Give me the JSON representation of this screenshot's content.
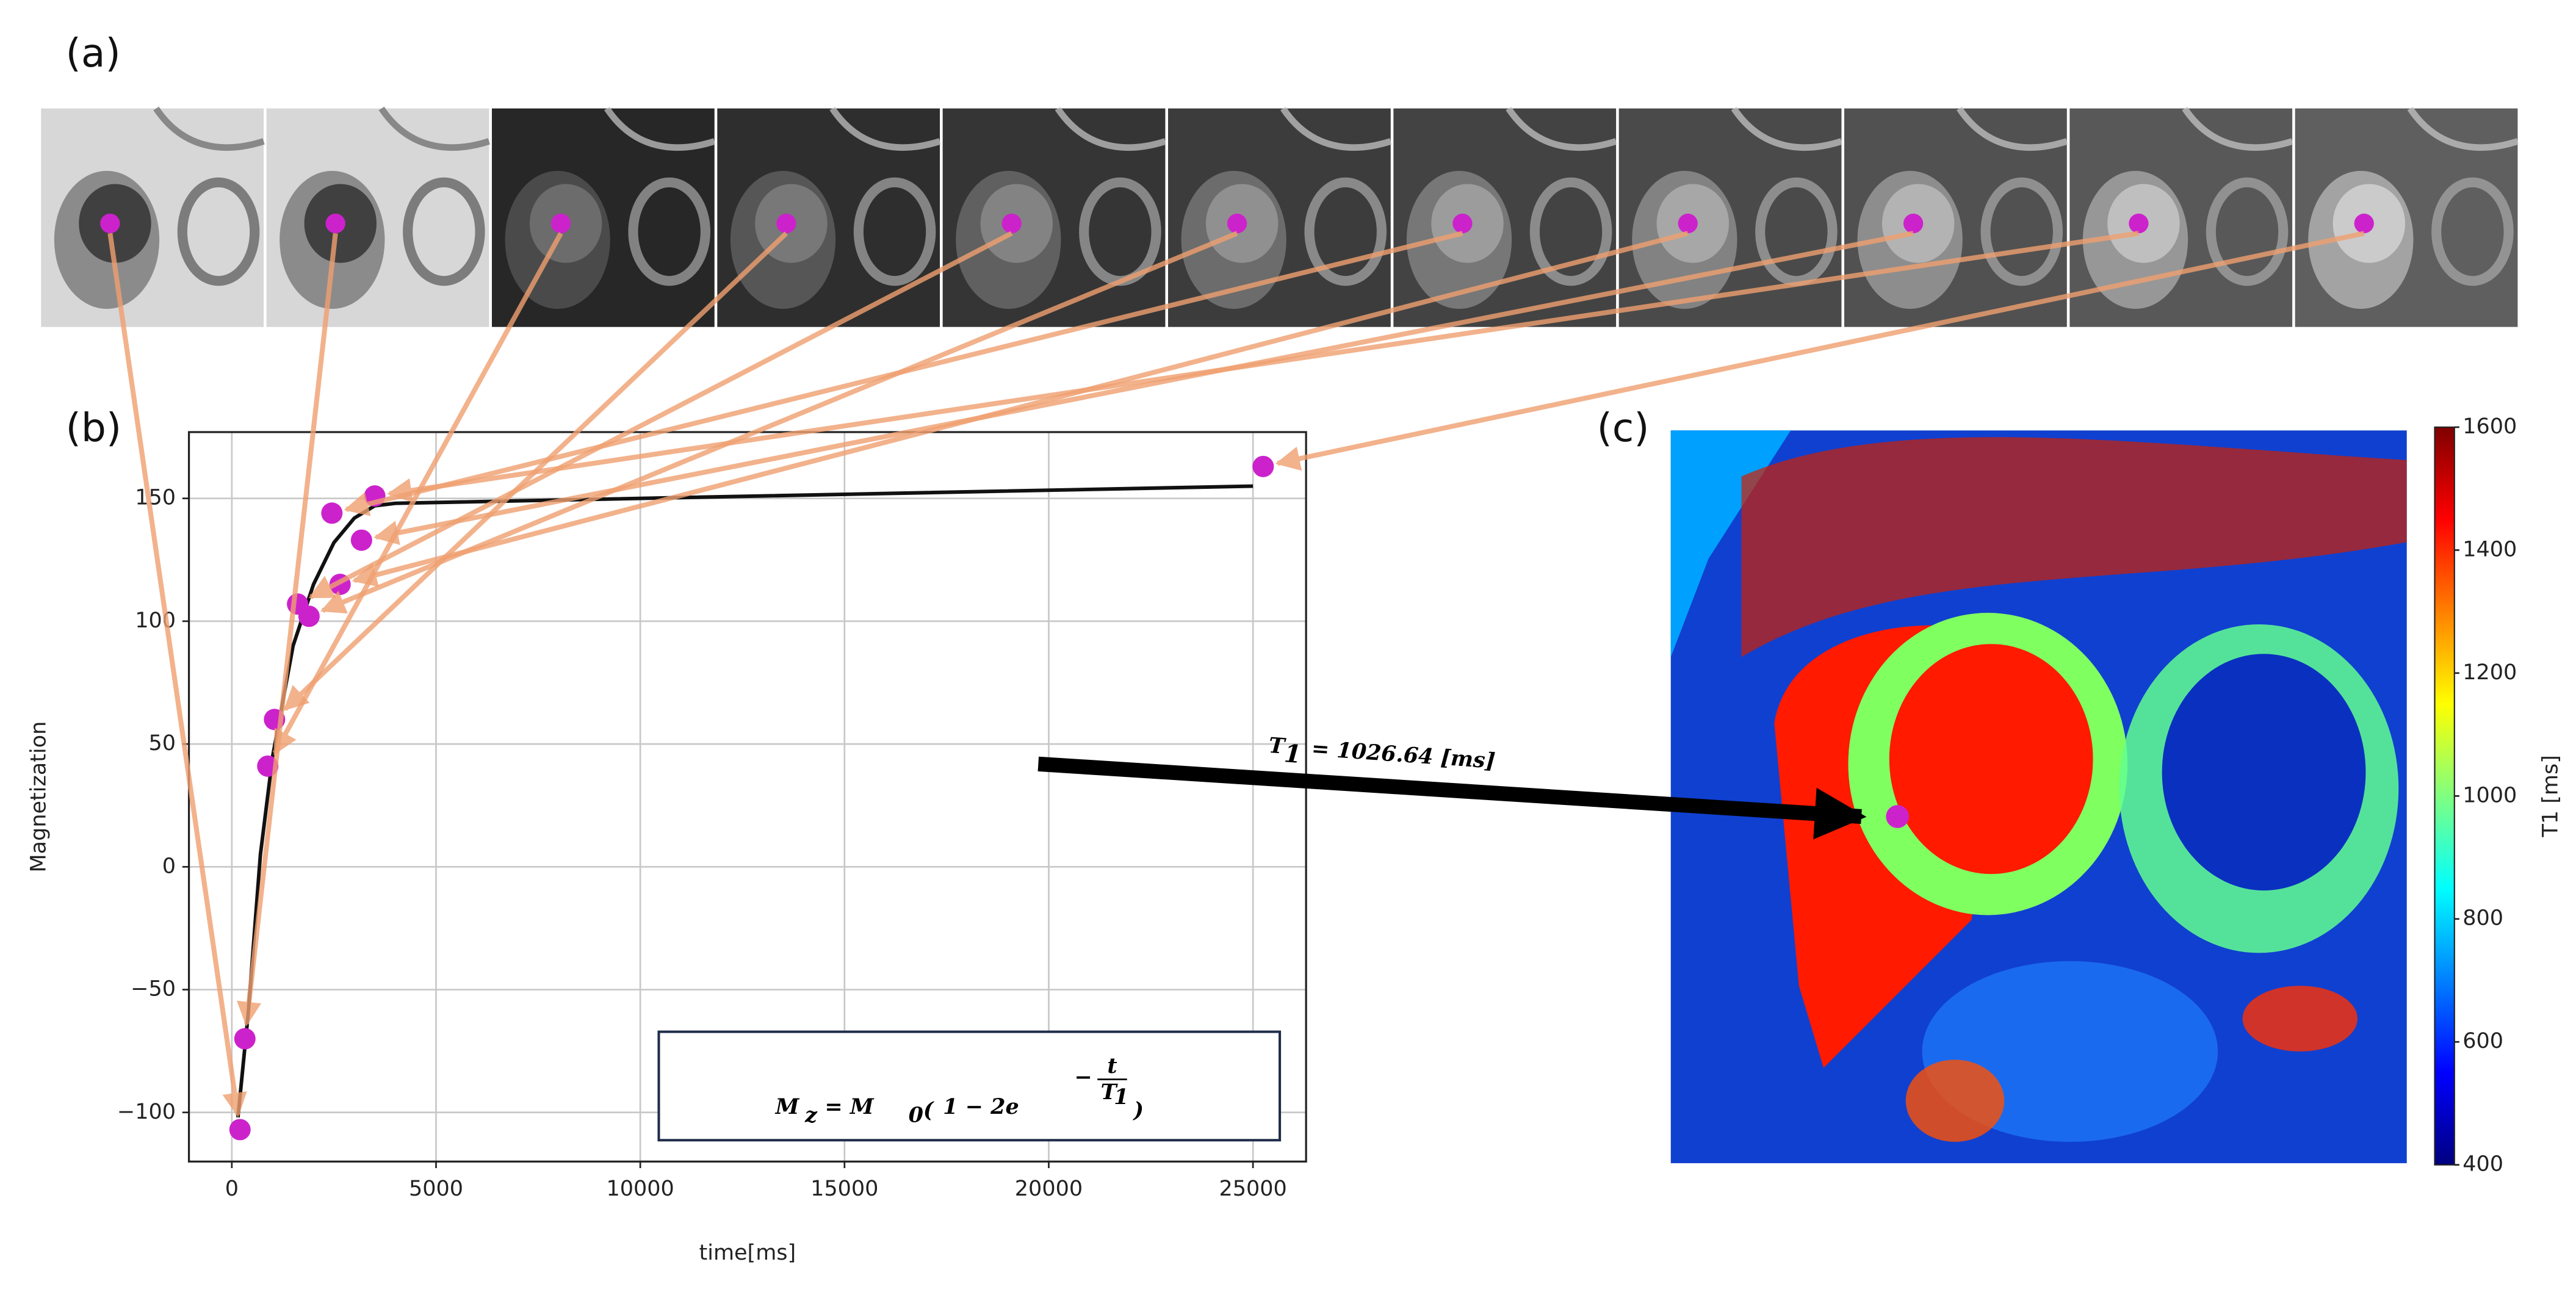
{
  "panel_labels": [
    "(a)",
    "(b)",
    "(c)"
  ],
  "annotation": {
    "symbol": "T",
    "subscript": "1",
    "text": "= 1026.64 [ms]"
  },
  "formula": {
    "lhs": "M",
    "lhs_sub": "z",
    "eq": "= M",
    "eq_sub": "0",
    "open": "(",
    "body": "1 − 2e",
    "exp_sign": "−",
    "exp_num": "t",
    "exp_den": "T",
    "exp_den_sub": "1",
    "close": ")"
  },
  "chart_data": [
    {
      "type": "scatter",
      "x_label": "time[ms]",
      "y_label": "Magnetization",
      "x": [
        200,
        320,
        880,
        1045,
        1610,
        1890,
        2450,
        2650,
        3175,
        3500,
        25250
      ],
      "values": [
        -107,
        -70,
        41,
        60,
        107,
        102,
        144,
        115,
        133,
        151,
        163
      ],
      "color": "#cc22cc",
      "fit": {
        "x": [
          150,
          400,
          700,
          1000,
          1500,
          2000,
          2500,
          3000,
          3500,
          4000,
          25000
        ],
        "values": [
          -102,
          -60,
          5,
          45,
          90,
          115,
          132,
          142,
          147,
          148,
          155
        ],
        "color": "#111111"
      },
      "arrow_color": "#f0a070",
      "xlim": [
        -1050,
        26300
      ],
      "ylim": [
        -120,
        177
      ],
      "xticks": [
        0,
        5000,
        10000,
        15000,
        20000,
        25000
      ],
      "yticks": [
        {
          "value": -100,
          "label": "−100"
        },
        {
          "value": -50,
          "label": "−50"
        },
        0,
        50,
        100,
        150
      ],
      "grid": true
    },
    {
      "type": "colorbar",
      "label": "T1 [ms]",
      "ylim": [
        400,
        1600
      ],
      "yticks": [
        400,
        600,
        800,
        1000,
        1200,
        1400,
        1600
      ],
      "colors": [
        "#00007f",
        "#0000ff",
        "#0080ff",
        "#00ffff",
        "#80ff80",
        "#ffff00",
        "#ff8000",
        "#ff0000",
        "#7f0000"
      ]
    }
  ]
}
